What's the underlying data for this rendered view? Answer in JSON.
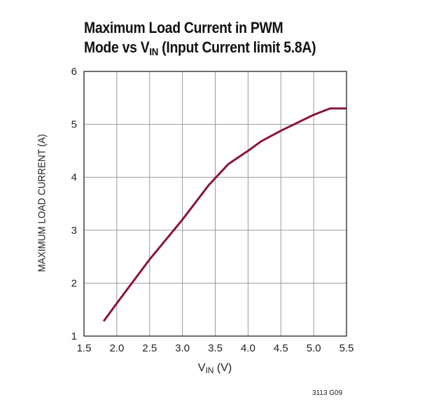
{
  "chart_data": {
    "type": "line",
    "title_line1": "Maximum Load Current in PWM",
    "title_line2_prefix": "Mode vs V",
    "title_line2_sub": "IN",
    "title_line2_suffix": " (Input Current limit 5.8A)",
    "ylabel": "MAXIMUM LOAD CURRENT (A)",
    "xlabel_prefix": "V",
    "xlabel_sub": "IN",
    "xlabel_suffix": " (V)",
    "figure_id": "3113 G09",
    "xlim": [
      1.5,
      5.5
    ],
    "ylim": [
      1,
      6
    ],
    "x_ticks": [
      "1.5",
      "2.0",
      "2.5",
      "3.0",
      "3.5",
      "4.0",
      "4.5",
      "5.0",
      "5.5"
    ],
    "y_ticks": [
      "1",
      "2",
      "3",
      "4",
      "5",
      "6"
    ],
    "grid": true,
    "line_color": "#8b1538",
    "series": [
      {
        "x": [
          1.8,
          2.0,
          2.5,
          3.0,
          3.4,
          3.7,
          4.0,
          4.2,
          4.5,
          5.0,
          5.25,
          5.5
        ],
        "y": [
          1.28,
          1.62,
          2.45,
          3.2,
          3.85,
          4.25,
          4.5,
          4.68,
          4.88,
          5.18,
          5.3,
          5.3
        ]
      }
    ]
  }
}
